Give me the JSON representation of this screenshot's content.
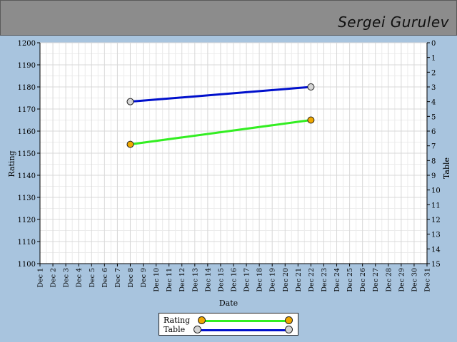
{
  "header": {
    "player_name": "Sergei Gurulev"
  },
  "colors": {
    "rating_line": "#33ee22",
    "rating_marker": "#f0a800",
    "table_line": "#0010cc",
    "table_marker": "#d4d4d4"
  },
  "chart_data": {
    "type": "line",
    "xlabel": "Date",
    "ylabel": "Rating",
    "y2label": "Table",
    "x_categories": [
      "Dec 1",
      "Dec 2",
      "Dec 3",
      "Dec 4",
      "Dec 5",
      "Dec 6",
      "Dec 7",
      "Dec 8",
      "Dec 9",
      "Dec 10",
      "Dec 11",
      "Dec 12",
      "Dec 13",
      "Dec 14",
      "Dec 15",
      "Dec 16",
      "Dec 17",
      "Dec 18",
      "Dec 19",
      "Dec 20",
      "Dec 21",
      "Dec 22",
      "Dec 23",
      "Dec 24",
      "Dec 25",
      "Dec 26",
      "Dec 27",
      "Dec 28",
      "Dec 29",
      "Dec 30",
      "Dec 31"
    ],
    "ylim": [
      1100,
      1200
    ],
    "y_ticks": [
      1100,
      1110,
      1120,
      1130,
      1140,
      1150,
      1160,
      1170,
      1180,
      1190,
      1200
    ],
    "y2lim": [
      15,
      0
    ],
    "y2_ticks": [
      0,
      1,
      2,
      3,
      4,
      5,
      6,
      7,
      8,
      9,
      10,
      11,
      12,
      13,
      14,
      15
    ],
    "grid": true,
    "legend_position": "bottom",
    "series": [
      {
        "name": "Rating",
        "axis": "left",
        "x": [
          "Dec 8",
          "Dec 22"
        ],
        "values": [
          1154,
          1165
        ]
      },
      {
        "name": "Table",
        "axis": "right",
        "x": [
          "Dec 8",
          "Dec 22"
        ],
        "values": [
          4,
          3
        ]
      }
    ]
  }
}
